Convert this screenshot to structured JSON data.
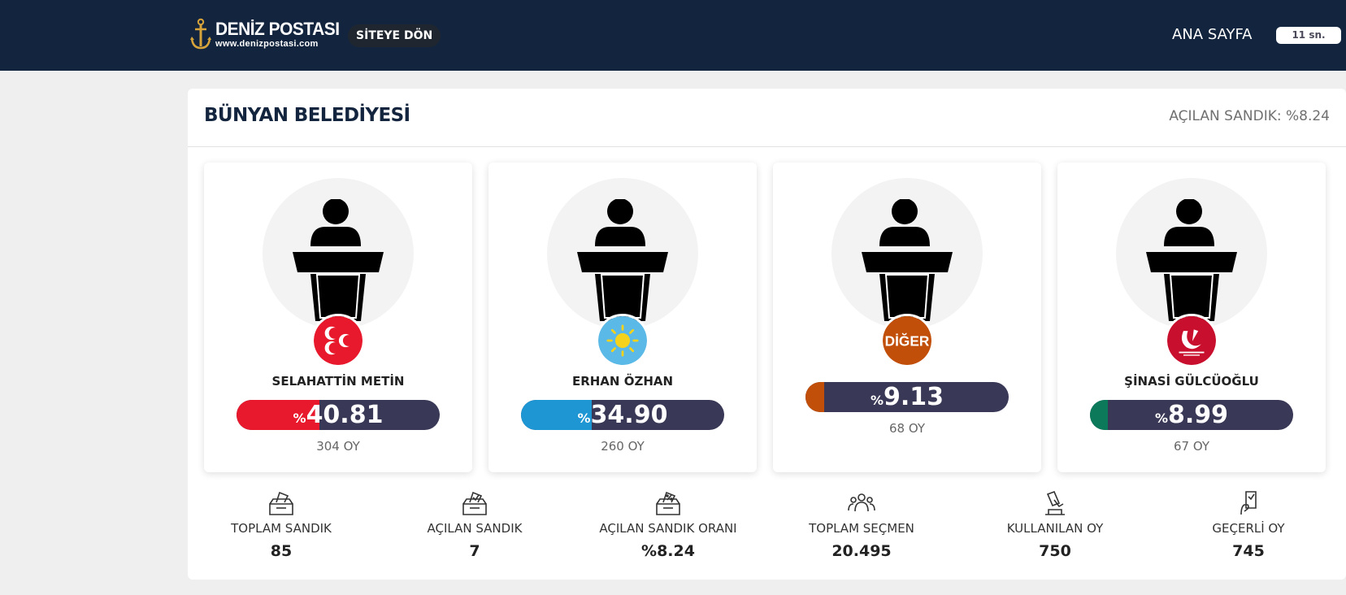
{
  "header": {
    "brand": "DENİZ POSTASI",
    "brand_url": "www.denizpostasi.com",
    "back_label": "SİTEYE DÖN",
    "home_label": "ANA SAYFA",
    "countdown": "11 sn."
  },
  "panel": {
    "title": "BÜNYAN BELEDİYESİ",
    "opened_ballot": "AÇILAN SANDIK: %8.24"
  },
  "candidates": [
    {
      "name": "SELAHATTİN METİN",
      "percent_symbol": "%",
      "percent": "40.81",
      "percent_value": 40.81,
      "votes": "304 OY",
      "party_icon": "mhp-crescents-logo",
      "color": "#e8192c"
    },
    {
      "name": "ERHAN ÖZHAN",
      "percent_symbol": "%",
      "percent": "34.90",
      "percent_value": 34.9,
      "votes": "260 OY",
      "party_icon": "iyi-parti-sun-logo",
      "color": "#1d96d3"
    },
    {
      "name": "",
      "party_label": "DİĞER",
      "percent_symbol": "%",
      "percent": "9.13",
      "percent_value": 9.13,
      "votes": "68 OY",
      "party_icon": "diger-logo",
      "color": "#c14f0a"
    },
    {
      "name": "ŞİNASİ GÜLCÜOĞLU",
      "percent_symbol": "%",
      "percent": "8.99",
      "percent_value": 8.99,
      "votes": "67 OY",
      "party_icon": "yeniden-refah-logo",
      "color": "#0c7a5a"
    }
  ],
  "stats": [
    {
      "label": "TOPLAM SANDIK",
      "value": "85",
      "icon": "ballot-box-icon"
    },
    {
      "label": "AÇILAN SANDIK",
      "value": "7",
      "icon": "ballot-check-icon"
    },
    {
      "label": "AÇILAN SANDIK ORANI",
      "value": "%8.24",
      "icon": "ballot-percent-icon"
    },
    {
      "label": "TOPLAM SEÇMEN",
      "value": "20.495",
      "icon": "voters-group-icon"
    },
    {
      "label": "KULLANILAN OY",
      "value": "750",
      "icon": "vote-cast-icon"
    },
    {
      "label": "GEÇERLİ OY",
      "value": "745",
      "icon": "valid-vote-icon"
    }
  ],
  "colors": {
    "header_bg": "#13253e",
    "bar_bg": "#393856",
    "title": "#13253e"
  }
}
